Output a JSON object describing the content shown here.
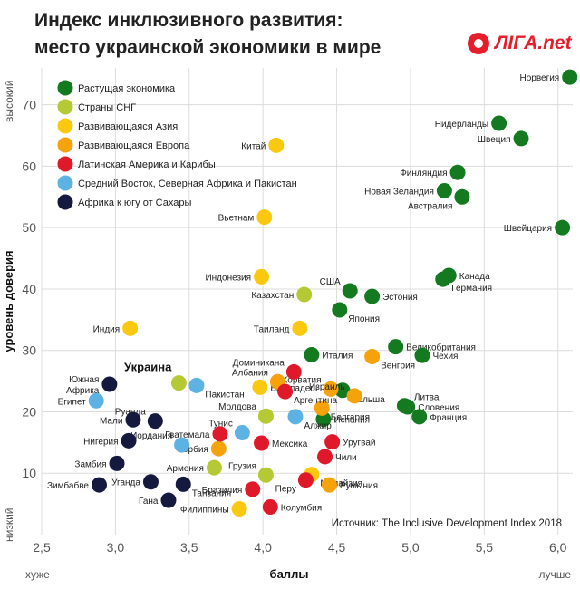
{
  "title_line1": "Индекс инклюзивного развития:",
  "title_line2": "место украинской экономики в мире",
  "logo_text": "ЛIГА.net",
  "chart_data": {
    "type": "scatter",
    "xlabel": "баллы",
    "ylabel": "уровень доверия",
    "x_low": "хуже",
    "x_high": "лучше",
    "y_low": "низкий",
    "y_high": "высокий",
    "xlim": [
      2.5,
      6.1
    ],
    "ylim": [
      0,
      76
    ],
    "xticks": [
      "2,5",
      "3,0",
      "3,5",
      "4,0",
      "4,5",
      "5,0",
      "5,5",
      "6,0"
    ],
    "xtick_values": [
      2.5,
      3.0,
      3.5,
      4.0,
      4.5,
      5.0,
      5.5,
      6.0
    ],
    "yticks": [
      "10",
      "20",
      "30",
      "40",
      "50",
      "60",
      "70"
    ],
    "ytick_values": [
      10,
      20,
      30,
      40,
      50,
      60,
      70
    ],
    "grid": true,
    "source": "Источник: The Inclusive Development Index 2018",
    "highlight_label": "Украина",
    "legend": [
      {
        "name": "Растущая экономика",
        "color": "#137a1f"
      },
      {
        "name": "Страны СНГ",
        "color": "#b5c934"
      },
      {
        "name": "Развивающаяся Азия",
        "color": "#fac90f"
      },
      {
        "name": "Развивающаяся Европа",
        "color": "#f6a20b"
      },
      {
        "name": "Латинская Америка и Карибы",
        "color": "#e0192a"
      },
      {
        "name": "Средний Восток, Северная Африка и Пакистан",
        "color": "#5cb2e2"
      },
      {
        "name": "Африка к югу от Сахары",
        "color": "#15193f"
      }
    ],
    "points": [
      {
        "label": "Норвегия",
        "x": 6.08,
        "y": 74.5,
        "group": 0,
        "anchor": "l"
      },
      {
        "label": "Нидерланды",
        "x": 5.6,
        "y": 67.0,
        "group": 0,
        "anchor": "l"
      },
      {
        "label": "Швеция",
        "x": 5.75,
        "y": 64.5,
        "group": 0,
        "anchor": "l"
      },
      {
        "label": "Финляндия",
        "x": 5.32,
        "y": 59.0,
        "group": 0,
        "anchor": "l"
      },
      {
        "label": "Новая Зеландия",
        "x": 5.23,
        "y": 56.0,
        "group": 0,
        "anchor": "l"
      },
      {
        "label": "Австралия",
        "x": 5.35,
        "y": 55.0,
        "group": 0,
        "anchor": "lb"
      },
      {
        "label": "Швейцария",
        "x": 6.03,
        "y": 50.0,
        "group": 0,
        "anchor": "l"
      },
      {
        "label": "Канада",
        "x": 5.26,
        "y": 42.2,
        "group": 0,
        "anchor": "r"
      },
      {
        "label": "Германия",
        "x": 5.22,
        "y": 41.6,
        "group": 0,
        "anchor": "rb"
      },
      {
        "label": "США",
        "x": 4.59,
        "y": 39.7,
        "group": 0,
        "anchor": "lt"
      },
      {
        "label": "Эстония",
        "x": 4.74,
        "y": 38.8,
        "group": 0,
        "anchor": "r"
      },
      {
        "label": "Япония",
        "x": 4.52,
        "y": 36.6,
        "group": 0,
        "anchor": "rb"
      },
      {
        "label": "Великобритания",
        "x": 4.9,
        "y": 30.6,
        "group": 0,
        "anchor": "r"
      },
      {
        "label": "Чехия",
        "x": 5.08,
        "y": 29.2,
        "group": 0,
        "anchor": "r"
      },
      {
        "label": "Италия",
        "x": 4.33,
        "y": 29.3,
        "group": 0,
        "anchor": "r"
      },
      {
        "label": "Литва",
        "x": 4.96,
        "y": 21.0,
        "group": 0,
        "anchor": "rt"
      },
      {
        "label": "Словения",
        "x": 4.98,
        "y": 20.8,
        "group": 0,
        "anchor": "r"
      },
      {
        "label": "Франция",
        "x": 5.06,
        "y": 19.2,
        "group": 0,
        "anchor": "r"
      },
      {
        "label": "Испания",
        "x": 4.41,
        "y": 18.8,
        "group": 0,
        "anchor": "r"
      },
      {
        "label": "Польша",
        "x": 4.54,
        "y": 23.5,
        "group": 0,
        "anchor": "rb"
      },
      {
        "label": "Украина",
        "x": 3.43,
        "y": 24.7,
        "group": 1,
        "anchor": "none"
      },
      {
        "label": "Казахстан",
        "x": 4.28,
        "y": 39.1,
        "group": 1,
        "anchor": "l"
      },
      {
        "label": "Молдова",
        "x": 4.02,
        "y": 19.3,
        "group": 1,
        "anchor": "lt"
      },
      {
        "label": "Армения",
        "x": 3.67,
        "y": 10.9,
        "group": 1,
        "anchor": "l"
      },
      {
        "label": "Грузия",
        "x": 4.02,
        "y": 9.7,
        "group": 1,
        "anchor": "lt"
      },
      {
        "label": "Китай",
        "x": 4.09,
        "y": 63.4,
        "group": 2,
        "anchor": "l"
      },
      {
        "label": "Вьетнам",
        "x": 4.01,
        "y": 51.7,
        "group": 2,
        "anchor": "l"
      },
      {
        "label": "Индонезия",
        "x": 3.99,
        "y": 42.0,
        "group": 2,
        "anchor": "l"
      },
      {
        "label": "Таиланд",
        "x": 4.25,
        "y": 33.6,
        "group": 2,
        "anchor": "l"
      },
      {
        "label": "Индия",
        "x": 3.1,
        "y": 33.6,
        "group": 2,
        "anchor": "l"
      },
      {
        "label": "Бангладеш",
        "x": 3.98,
        "y": 24.0,
        "group": 2,
        "anchor": "r"
      },
      {
        "label": "Малайзия",
        "x": 4.33,
        "y": 9.8,
        "group": 2,
        "anchor": "rb"
      },
      {
        "label": "Филиппины",
        "x": 3.84,
        "y": 4.2,
        "group": 2,
        "anchor": "l"
      },
      {
        "label": "Хорватия",
        "x": 4.46,
        "y": 23.7,
        "group": 3,
        "anchor": "lt"
      },
      {
        "label": "Албания",
        "x": 4.1,
        "y": 24.9,
        "group": 3,
        "anchor": "lt"
      },
      {
        "label": "Израиль",
        "x": 4.62,
        "y": 22.6,
        "group": 3,
        "anchor": "lt"
      },
      {
        "label": "Венгрия",
        "x": 4.74,
        "y": 29.0,
        "group": 3,
        "anchor": "rb"
      },
      {
        "label": "Болгария",
        "x": 4.4,
        "y": 20.6,
        "group": 3,
        "anchor": "rb"
      },
      {
        "label": "Румыния",
        "x": 4.45,
        "y": 8.1,
        "group": 3,
        "anchor": "r"
      },
      {
        "label": "Сербия",
        "x": 3.7,
        "y": 14.0,
        "group": 3,
        "anchor": "l"
      },
      {
        "label": "Доминикана",
        "x": 4.21,
        "y": 26.5,
        "group": 4,
        "anchor": "lt"
      },
      {
        "label": "Аргентина",
        "x": 4.15,
        "y": 23.3,
        "group": 4,
        "anchor": "rb"
      },
      {
        "label": "Гватемала",
        "x": 3.71,
        "y": 16.4,
        "group": 4,
        "anchor": "l"
      },
      {
        "label": "Мексика",
        "x": 3.99,
        "y": 14.9,
        "group": 4,
        "anchor": "r"
      },
      {
        "label": "Уругвай",
        "x": 4.47,
        "y": 15.1,
        "group": 4,
        "anchor": "r"
      },
      {
        "label": "Чили",
        "x": 4.42,
        "y": 12.7,
        "group": 4,
        "anchor": "r"
      },
      {
        "label": "Бразилия",
        "x": 3.93,
        "y": 7.4,
        "group": 4,
        "anchor": "l"
      },
      {
        "label": "Перу",
        "x": 4.29,
        "y": 8.9,
        "group": 4,
        "anchor": "lb"
      },
      {
        "label": "Колумбия",
        "x": 4.05,
        "y": 4.5,
        "group": 4,
        "anchor": "r"
      },
      {
        "label": "Египет",
        "x": 2.87,
        "y": 21.8,
        "group": 5,
        "anchor": "l"
      },
      {
        "label": "Пакистан",
        "x": 3.55,
        "y": 24.3,
        "group": 5,
        "anchor": "rb"
      },
      {
        "label": "Тунис",
        "x": 3.86,
        "y": 16.6,
        "group": 5,
        "anchor": "lt"
      },
      {
        "label": "Алжир",
        "x": 4.22,
        "y": 19.2,
        "group": 5,
        "anchor": "rb"
      },
      {
        "label": "Иордания",
        "x": 3.45,
        "y": 14.6,
        "group": 5,
        "anchor": "lt"
      },
      {
        "label": "Южная Африка",
        "x": 2.96,
        "y": 24.5,
        "group": 6,
        "anchor": "l2"
      },
      {
        "label": "Руанда",
        "x": 3.27,
        "y": 18.5,
        "group": 6,
        "anchor": "lt"
      },
      {
        "label": "Мали",
        "x": 3.12,
        "y": 18.7,
        "group": 6,
        "anchor": "l"
      },
      {
        "label": "Нигерия",
        "x": 3.09,
        "y": 15.3,
        "group": 6,
        "anchor": "l"
      },
      {
        "label": "Замбия",
        "x": 3.01,
        "y": 11.6,
        "group": 6,
        "anchor": "l"
      },
      {
        "label": "Зимбабве",
        "x": 2.89,
        "y": 8.1,
        "group": 6,
        "anchor": "l"
      },
      {
        "label": "Уганда",
        "x": 3.24,
        "y": 8.6,
        "group": 6,
        "anchor": "l"
      },
      {
        "label": "Гана",
        "x": 3.36,
        "y": 5.6,
        "group": 6,
        "anchor": "l"
      },
      {
        "label": "Танзания",
        "x": 3.46,
        "y": 8.2,
        "group": 6,
        "anchor": "rb"
      }
    ]
  }
}
